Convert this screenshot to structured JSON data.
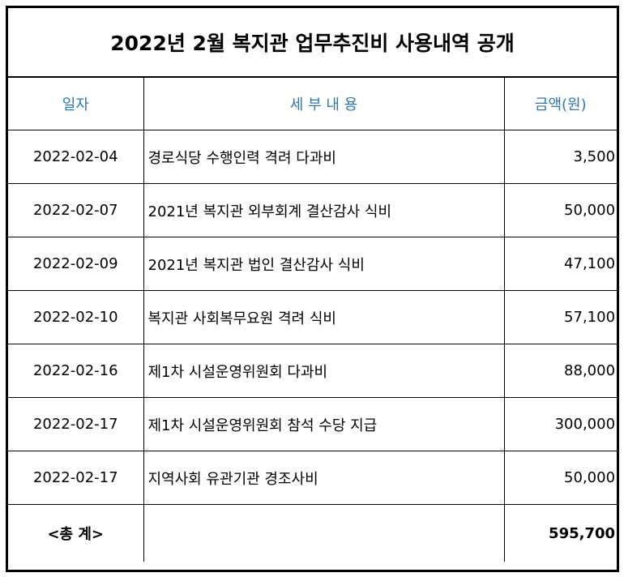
{
  "title": "2022년 2월 복지관 업무추진비 사용내역 공개",
  "headers": {
    "date": "일자",
    "detail": "세 부 내 용",
    "amount": "금액(원)"
  },
  "rows": [
    {
      "date": "2022-02-04",
      "detail": "경로식당 수행인력 격려 다과비",
      "amount": "3,500"
    },
    {
      "date": "2022-02-07",
      "detail": "2021년 복지관 외부회계 결산감사 식비",
      "amount": "50,000"
    },
    {
      "date": "2022-02-09",
      "detail": "2021년 복지관 법인 결산감사 식비",
      "amount": "47,100"
    },
    {
      "date": "2022-02-10",
      "detail": "복지관 사회복무요원 격려 식비",
      "amount": "57,100"
    },
    {
      "date": "2022-02-16",
      "detail": "제1차 시설운영위원회 다과비",
      "amount": "88,000"
    },
    {
      "date": "2022-02-17",
      "detail": "제1차 시설운영위원회 참석 수당 지급",
      "amount": "300,000"
    },
    {
      "date": "2022-02-17",
      "detail": "지역사회 유관기관 경조사비",
      "amount": "50,000"
    }
  ],
  "total": {
    "label": "<총 계>",
    "amount": "595,700"
  }
}
